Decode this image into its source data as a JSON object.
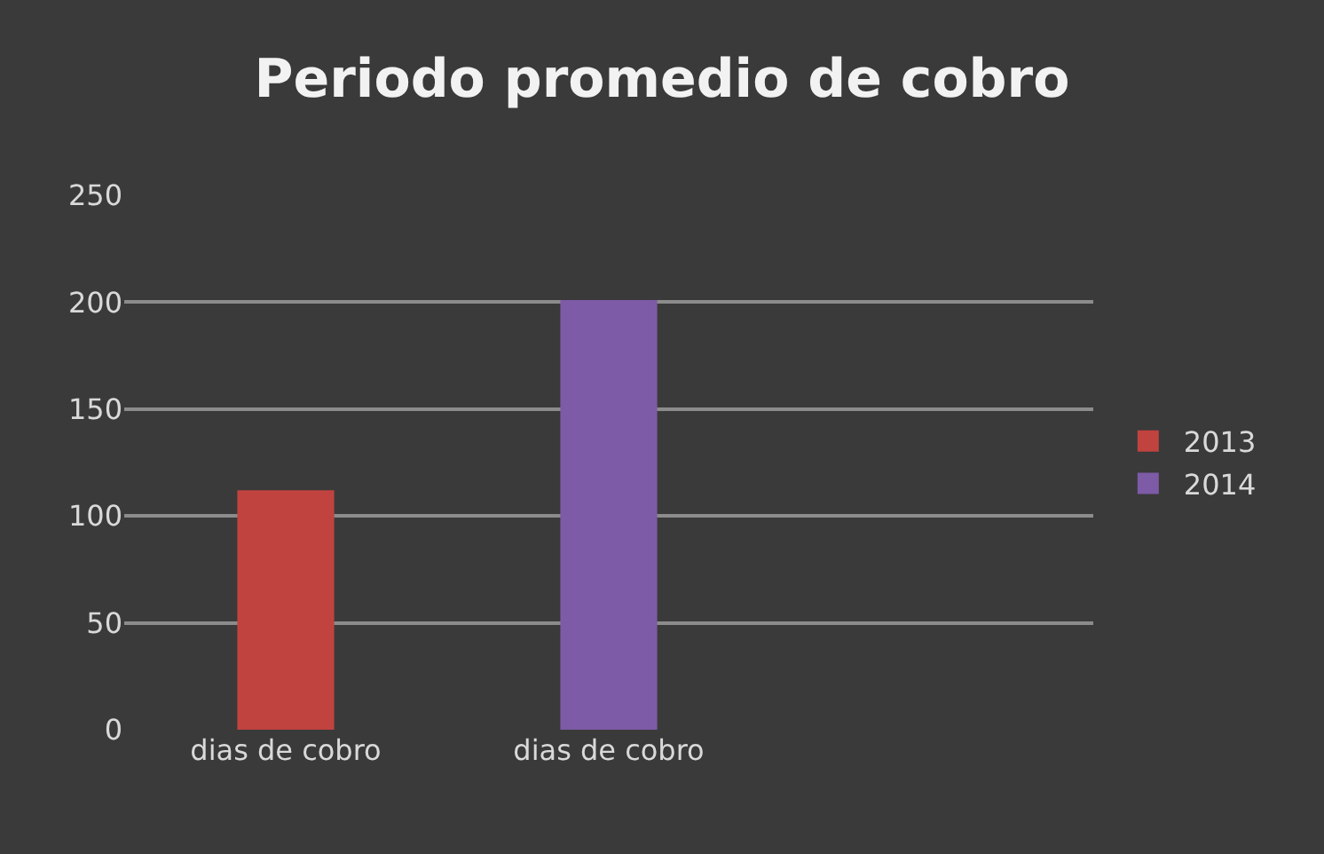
{
  "chart_data": {
    "type": "bar",
    "title": "Periodo promedio de cobro",
    "categories": [
      "dias de cobro",
      "dias de cobro"
    ],
    "series": [
      {
        "name": "2013",
        "color": "#c0433f",
        "values": [
          112,
          null
        ]
      },
      {
        "name": "2014",
        "color": "#7d5ba6",
        "values": [
          null,
          201
        ]
      }
    ],
    "ylim": [
      0,
      250
    ],
    "yticks": [
      0,
      50,
      100,
      150,
      200,
      250
    ],
    "grid": "y",
    "legend": "right"
  }
}
